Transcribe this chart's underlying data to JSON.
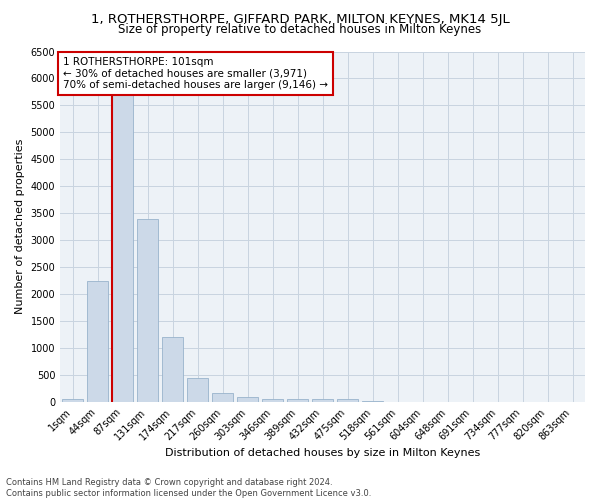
{
  "title": "1, ROTHERSTHORPE, GIFFARD PARK, MILTON KEYNES, MK14 5JL",
  "subtitle": "Size of property relative to detached houses in Milton Keynes",
  "xlabel": "Distribution of detached houses by size in Milton Keynes",
  "ylabel": "Number of detached properties",
  "footer_line1": "Contains HM Land Registry data © Crown copyright and database right 2024.",
  "footer_line2": "Contains public sector information licensed under the Open Government Licence v3.0.",
  "bar_labels": [
    "1sqm",
    "44sqm",
    "87sqm",
    "131sqm",
    "174sqm",
    "217sqm",
    "260sqm",
    "303sqm",
    "346sqm",
    "389sqm",
    "432sqm",
    "475sqm",
    "518sqm",
    "561sqm",
    "604sqm",
    "648sqm",
    "691sqm",
    "734sqm",
    "777sqm",
    "820sqm",
    "863sqm"
  ],
  "bar_values": [
    50,
    2250,
    6250,
    3400,
    1200,
    450,
    175,
    100,
    55,
    55,
    55,
    55,
    20,
    0,
    0,
    0,
    0,
    0,
    0,
    0,
    0
  ],
  "bar_color": "#ccd9e8",
  "bar_edge_color": "#99b3cc",
  "vline_index": 2,
  "vline_color": "#cc0000",
  "annotation_line1": "1 ROTHERSTHORPE: 101sqm",
  "annotation_line2": "← 30% of detached houses are smaller (3,971)",
  "annotation_line3": "70% of semi-detached houses are larger (9,146) →",
  "annotation_box_edge_color": "#cc0000",
  "annotation_box_facecolor": "white",
  "ylim": [
    0,
    6500
  ],
  "yticks": [
    0,
    500,
    1000,
    1500,
    2000,
    2500,
    3000,
    3500,
    4000,
    4500,
    5000,
    5500,
    6000,
    6500
  ],
  "grid_color": "#c8d4e0",
  "bg_color": "#edf2f7",
  "title_fontsize": 9.5,
  "subtitle_fontsize": 8.5,
  "xlabel_fontsize": 8,
  "ylabel_fontsize": 8,
  "tick_fontsize": 7,
  "annotation_fontsize": 7.5,
  "footer_fontsize": 6
}
